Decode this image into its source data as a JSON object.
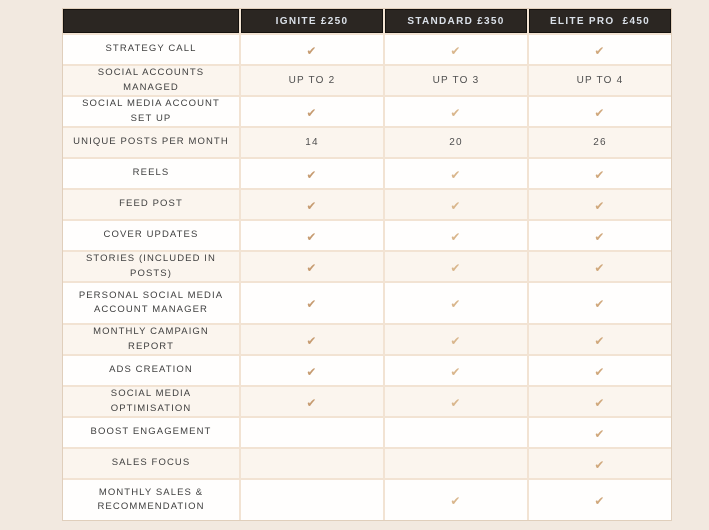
{
  "table": {
    "columns": [
      {
        "label": "IGNITE £250"
      },
      {
        "label": "STANDARD £350"
      },
      {
        "label": "ELITE PRO  £450"
      }
    ],
    "rows": [
      {
        "feature": "STRATEGY CALL",
        "values": [
          "check",
          "check",
          "check"
        ]
      },
      {
        "feature": "SOCIAL ACCOUNTS MANAGED",
        "values": [
          "UP TO 2",
          "UP TO 3",
          "UP TO 4"
        ]
      },
      {
        "feature": "SOCIAL MEDIA ACCOUNT SET UP",
        "values": [
          "check",
          "check",
          "check"
        ]
      },
      {
        "feature": "UNIQUE POSTS PER MONTH",
        "values": [
          "14",
          "20",
          "26"
        ]
      },
      {
        "feature": "REELS",
        "values": [
          "check",
          "check",
          "check"
        ]
      },
      {
        "feature": "FEED POST",
        "values": [
          "check",
          "check",
          "check"
        ]
      },
      {
        "feature": "COVER UPDATES",
        "values": [
          "check",
          "check",
          "check"
        ]
      },
      {
        "feature": "STORIES (INCLUDED IN POSTS)",
        "values": [
          "check",
          "check",
          "check"
        ]
      },
      {
        "feature": "PERSONAL SOCIAL MEDIA ACCOUNT MANAGER",
        "values": [
          "check",
          "check",
          "check"
        ],
        "tall": true
      },
      {
        "feature": "MONTHLY CAMPAIGN REPORT",
        "values": [
          "check",
          "check",
          "check"
        ]
      },
      {
        "feature": "ADS CREATION",
        "values": [
          "check",
          "check",
          "check"
        ]
      },
      {
        "feature": "SOCIAL MEDIA OPTIMISATION",
        "values": [
          "check",
          "check",
          "check"
        ]
      },
      {
        "feature": "BOOST ENGAGEMENT",
        "values": [
          "",
          "",
          "check"
        ]
      },
      {
        "feature": "SALES FOCUS",
        "values": [
          "",
          "",
          "check"
        ]
      },
      {
        "feature": "MONTHLY SALES & RECOMMENDATION",
        "values": [
          "",
          "check",
          "check"
        ],
        "tall": true
      }
    ],
    "check_symbol": "✔"
  },
  "colors": {
    "page_bg": "#f2e9e0",
    "header_bg": "#2b2622",
    "header_text": "#dbe1e9",
    "row_white": "#fffefd",
    "row_cream": "#fbf5ee",
    "grid_line": "#f2e3d3",
    "feature_text": "#3e3e3e",
    "value_text": "#4f4f4f",
    "check_ignite": "#c69b70",
    "check_standard": "#d9b68c",
    "check_elite": "#d0a87c"
  }
}
